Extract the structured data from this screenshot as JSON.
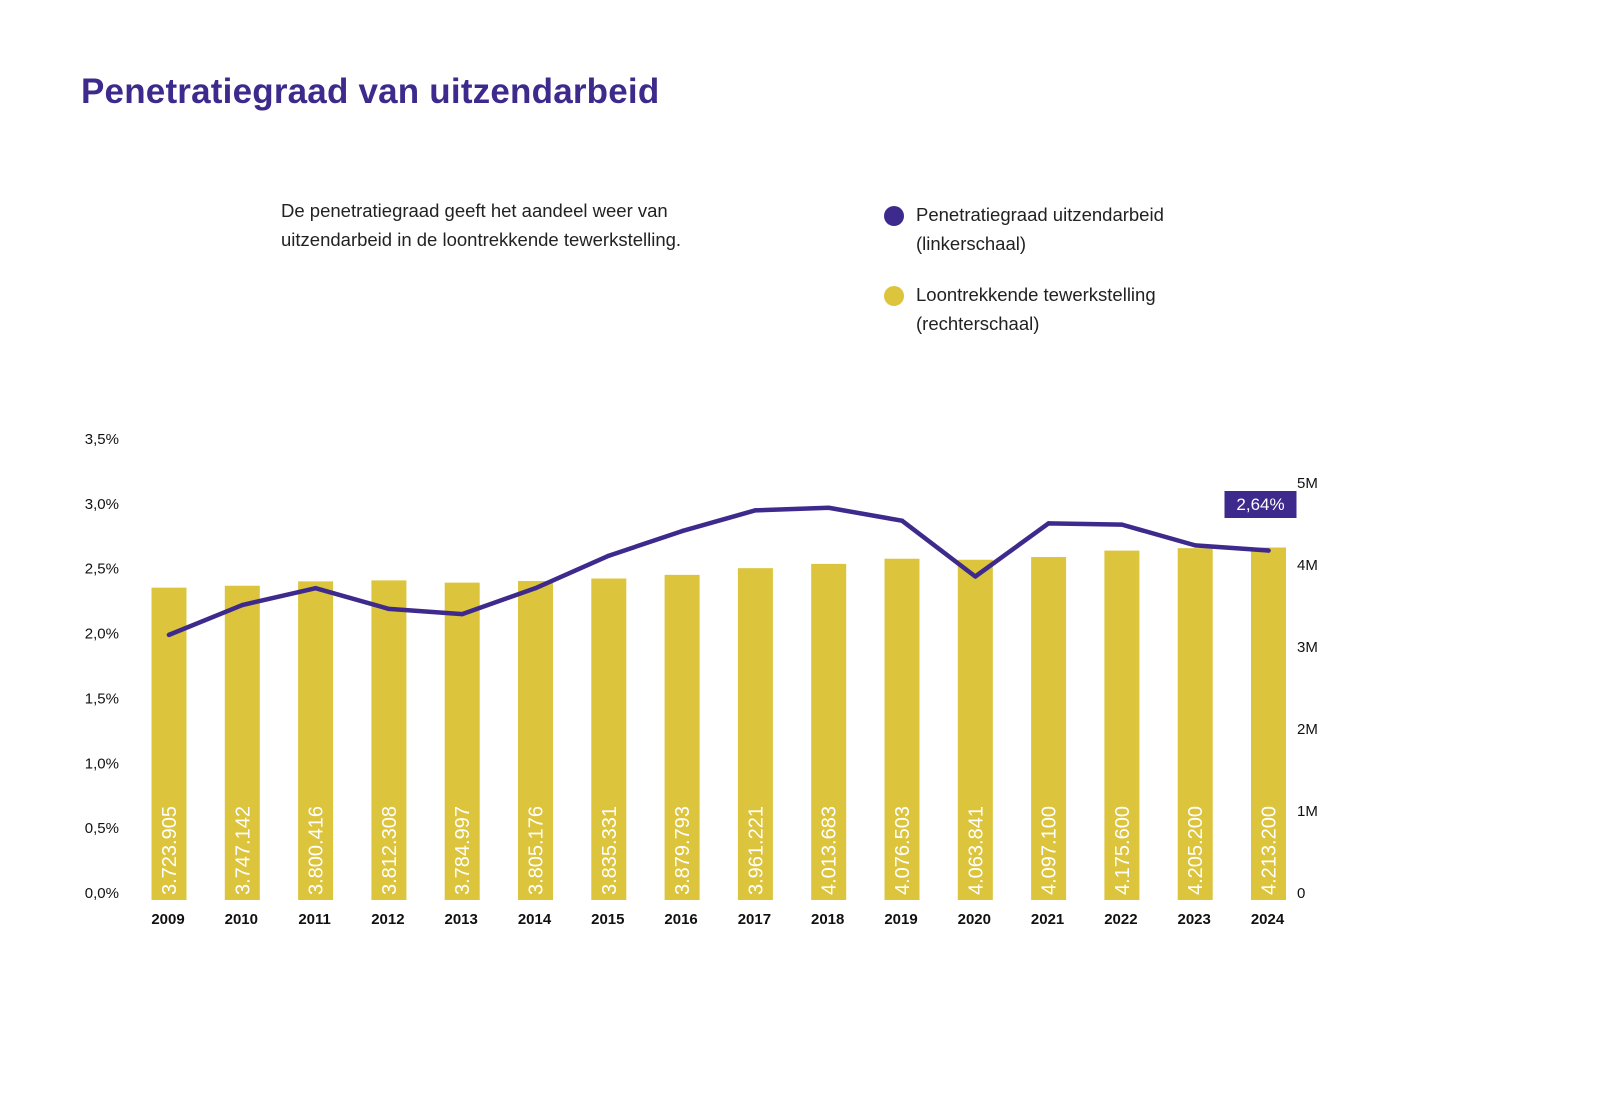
{
  "title": "Penetratiegraad van uitzendarbeid",
  "description": "De penetratiegraad geeft het aandeel weer van uitzendarbeid in de loontrekkende tewerkstelling.",
  "legend": [
    {
      "label": "Penetratiegraad uitzendarbeid (linkerschaal)",
      "color": "#3d2a8c"
    },
    {
      "label": "Loontrekkende tewerkstelling (rechterschaal)",
      "color": "#dcc43c"
    }
  ],
  "colors": {
    "line": "#3d2a8c",
    "bar": "#dcc43c",
    "title": "#3d2a8c"
  },
  "chart_data": {
    "type": "bar+line",
    "title": "Penetratiegraad van uitzendarbeid",
    "categories": [
      "2009",
      "2010",
      "2011",
      "2012",
      "2013",
      "2014",
      "2015",
      "2016",
      "2017",
      "2018",
      "2019",
      "2020",
      "2021",
      "2022",
      "2023",
      "2024"
    ],
    "bars": {
      "axis": "right",
      "values": [
        3723905,
        3747142,
        3800416,
        3812308,
        3784997,
        3805176,
        3835331,
        3879793,
        3961221,
        4013683,
        4076503,
        4063841,
        4097100,
        4175600,
        4205200,
        4213200
      ],
      "labels": [
        "3.723.905",
        "3.747.142",
        "3.800.416",
        "3.812.308",
        "3.784.997",
        "3.805.176",
        "3.835.331",
        "3.879.793",
        "3.961.221",
        "4.013.683",
        "4.076.503",
        "4.063.841",
        "4.097.100",
        "4.175.600",
        "4.205.200",
        "4.213.200"
      ]
    },
    "line": {
      "axis": "left",
      "values": [
        1.99,
        2.22,
        2.35,
        2.19,
        2.15,
        2.35,
        2.6,
        2.79,
        2.95,
        2.97,
        2.87,
        2.44,
        2.85,
        2.84,
        2.68,
        2.64
      ],
      "callout": "2,64%"
    },
    "y_left": {
      "min": 0,
      "max": 3.5,
      "ticks": [
        "0,0%",
        "0,5%",
        "1,0%",
        "1,5%",
        "2,0%",
        "2,5%",
        "3,0%",
        "3,5%"
      ]
    },
    "y_right": {
      "min": 0,
      "max": 5000000,
      "ticks": [
        "0",
        "1M",
        "2M",
        "3M",
        "4M",
        "5M"
      ]
    },
    "grid": false
  }
}
